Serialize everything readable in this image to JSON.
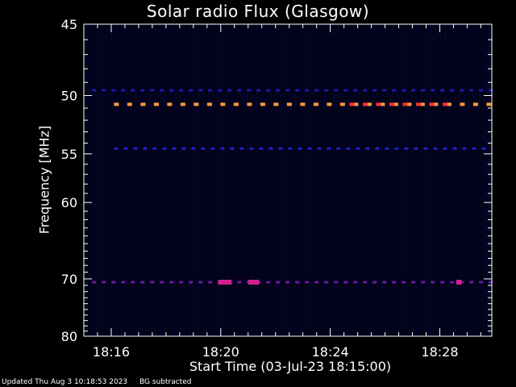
{
  "chart_data": {
    "type": "heatmap",
    "title": "Solar radio Flux (Glasgow)",
    "ylabel": "Frequency [MHz]",
    "xlabel": "Start Time (03-Jul-23 18:15:00)",
    "x_tick_labels": [
      "18:16",
      "18:20",
      "18:24",
      "18:28"
    ],
    "x_ticks_minutes": [
      16,
      20,
      24,
      28
    ],
    "x_range_minutes": [
      15.0,
      29.9
    ],
    "y_tick_labels": [
      "45",
      "50",
      "55",
      "60",
      "70",
      "80"
    ],
    "y_ticks_mhz": [
      45,
      50,
      55,
      60,
      70,
      80
    ],
    "y_range_mhz": [
      45,
      80
    ],
    "y_scale": "reciprocal",
    "background": "dark navy (background subtracted)",
    "bands": [
      {
        "freq_mhz": 49.6,
        "intensity": "low",
        "color": "#1a1aa8",
        "start_min": 15.3,
        "end_min": 29.8
      },
      {
        "freq_mhz": 50.7,
        "intensity": "high",
        "color": "#ff9a40",
        "start_min": 16.1,
        "end_min": 29.8
      },
      {
        "freq_mhz": 54.5,
        "intensity": "low",
        "color": "#2020c8",
        "start_min": 16.1,
        "end_min": 29.8
      },
      {
        "freq_mhz": 70.5,
        "intensity": "low",
        "color": "#6a1aa0",
        "start_min": 15.3,
        "end_min": 29.8
      }
    ],
    "hot_spots": [
      {
        "freq_mhz": 50.7,
        "start_min": 24.7,
        "end_min": 28.5,
        "color": "#ff3030"
      },
      {
        "freq_mhz": 70.5,
        "start_min": 19.9,
        "end_min": 20.4,
        "color": "#d02090"
      },
      {
        "freq_mhz": 70.5,
        "start_min": 21.0,
        "end_min": 21.4,
        "color": "#d02090"
      },
      {
        "freq_mhz": 70.5,
        "start_min": 28.6,
        "end_min": 28.8,
        "color": "#d02090"
      }
    ]
  },
  "footer": {
    "updated": "Updated Thu Aug  3 10:18:53 2023",
    "note": "BG subtracted"
  }
}
